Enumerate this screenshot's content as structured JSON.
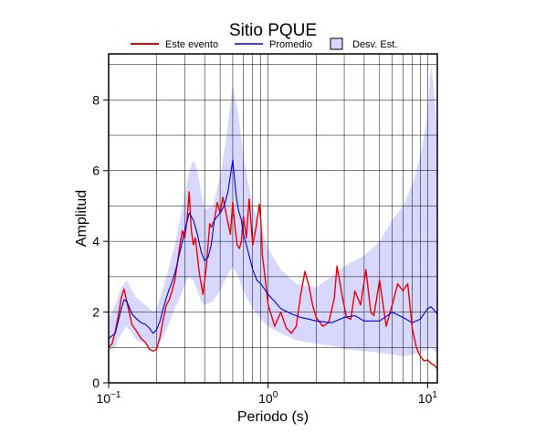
{
  "chart_data": {
    "type": "line",
    "title": "Sitio PQUE",
    "xlabel": "Periodo (s)",
    "ylabel": "Amplitud",
    "xscale": "log",
    "xlim": [
      0.1,
      11.5
    ],
    "ylim": [
      0,
      9.3
    ],
    "grid": true,
    "legend_position": "top",
    "y_ticks": [
      0,
      2,
      4,
      6,
      8
    ],
    "x_ticks": [
      {
        "value": 0.1,
        "base": "10",
        "exp": "−1"
      },
      {
        "value": 1,
        "base": "10",
        "exp": "0"
      },
      {
        "value": 10,
        "base": "10",
        "exp": "1"
      }
    ],
    "legend": {
      "este": "Este evento",
      "promedio": "Promedio",
      "desv": "Desv. Est."
    },
    "colors": {
      "este": "#ee0000",
      "promedio": "#0000dd",
      "band": "#d8d8ff"
    },
    "series": [
      {
        "name": "Este evento",
        "x": [
          0.1,
          0.105,
          0.11,
          0.115,
          0.12,
          0.125,
          0.13,
          0.14,
          0.15,
          0.16,
          0.17,
          0.18,
          0.19,
          0.2,
          0.21,
          0.22,
          0.23,
          0.24,
          0.25,
          0.26,
          0.27,
          0.28,
          0.29,
          0.3,
          0.31,
          0.32,
          0.33,
          0.34,
          0.35,
          0.37,
          0.39,
          0.41,
          0.43,
          0.44,
          0.46,
          0.48,
          0.5,
          0.52,
          0.55,
          0.58,
          0.6,
          0.62,
          0.64,
          0.66,
          0.68,
          0.7,
          0.73,
          0.76,
          0.8,
          0.84,
          0.88,
          0.9,
          0.92,
          0.95,
          1.0,
          1.05,
          1.1,
          1.2,
          1.3,
          1.4,
          1.5,
          1.6,
          1.7,
          1.8,
          1.9,
          2.0,
          2.2,
          2.4,
          2.6,
          2.7,
          2.9,
          3.1,
          3.3,
          3.5,
          3.8,
          4.1,
          4.4,
          4.6,
          5.0,
          5.5,
          6.0,
          6.5,
          7.0,
          7.5,
          8.0,
          8.5,
          9.0,
          9.5,
          10.0,
          10.5,
          11.0,
          11.5
        ],
        "values": [
          1.0,
          1.1,
          1.45,
          1.9,
          2.4,
          2.65,
          2.3,
          1.65,
          1.45,
          1.25,
          1.15,
          0.95,
          0.9,
          0.95,
          1.3,
          1.8,
          2.2,
          2.35,
          2.6,
          2.9,
          3.4,
          3.9,
          4.3,
          4.1,
          4.6,
          5.4,
          4.3,
          3.9,
          4.1,
          3.1,
          2.5,
          3.3,
          4.5,
          4.4,
          4.6,
          5.1,
          4.8,
          5.25,
          4.7,
          4.2,
          5.1,
          4.4,
          3.9,
          3.8,
          4.0,
          4.7,
          4.1,
          5.2,
          3.9,
          4.4,
          5.05,
          4.6,
          3.6,
          3.1,
          2.2,
          1.9,
          1.6,
          2.0,
          1.55,
          1.4,
          1.6,
          2.5,
          3.15,
          2.75,
          2.2,
          1.85,
          1.6,
          1.7,
          2.4,
          3.3,
          2.5,
          1.85,
          1.8,
          2.6,
          2.2,
          3.2,
          2.0,
          1.9,
          2.9,
          1.6,
          2.2,
          2.8,
          2.6,
          2.8,
          1.55,
          1.0,
          0.75,
          0.62,
          0.65,
          0.55,
          0.5,
          0.4
        ]
      },
      {
        "name": "Promedio",
        "x": [
          0.1,
          0.11,
          0.12,
          0.125,
          0.13,
          0.14,
          0.15,
          0.16,
          0.17,
          0.18,
          0.19,
          0.2,
          0.21,
          0.22,
          0.23,
          0.24,
          0.25,
          0.26,
          0.27,
          0.28,
          0.3,
          0.32,
          0.34,
          0.36,
          0.38,
          0.4,
          0.42,
          0.44,
          0.46,
          0.5,
          0.53,
          0.56,
          0.6,
          0.63,
          0.65,
          0.68,
          0.7,
          0.75,
          0.8,
          0.85,
          0.9,
          1.0,
          1.1,
          1.2,
          1.4,
          1.6,
          1.8,
          2.0,
          2.5,
          3.0,
          3.5,
          4.0,
          5.0,
          6.0,
          7.0,
          8.0,
          9.0,
          10.0,
          10.5,
          11.0,
          11.5
        ],
        "values": [
          1.25,
          1.4,
          2.1,
          2.35,
          2.3,
          1.95,
          1.8,
          1.7,
          1.65,
          1.55,
          1.4,
          1.5,
          1.75,
          2.1,
          2.4,
          2.65,
          2.85,
          3.1,
          3.4,
          3.7,
          4.3,
          4.8,
          4.6,
          4.2,
          3.7,
          3.45,
          3.55,
          3.9,
          4.6,
          4.8,
          5.0,
          5.4,
          6.3,
          5.3,
          4.9,
          4.6,
          4.2,
          3.7,
          3.2,
          2.9,
          2.8,
          2.5,
          2.3,
          2.1,
          1.95,
          1.85,
          1.8,
          1.75,
          1.7,
          1.85,
          1.9,
          1.75,
          1.75,
          2.0,
          1.85,
          1.7,
          1.8,
          2.1,
          2.15,
          2.05,
          1.95
        ]
      }
    ],
    "band": {
      "name": "Desv. Est.",
      "x": [
        0.1,
        0.11,
        0.12,
        0.13,
        0.14,
        0.15,
        0.17,
        0.19,
        0.2,
        0.22,
        0.24,
        0.26,
        0.28,
        0.3,
        0.32,
        0.34,
        0.36,
        0.38,
        0.4,
        0.45,
        0.5,
        0.55,
        0.6,
        0.65,
        0.7,
        0.8,
        0.9,
        1.0,
        1.2,
        1.5,
        2.0,
        2.5,
        3.0,
        4.0,
        5.0,
        6.0,
        7.0,
        8.0,
        9.0,
        10.0,
        10.5,
        11.0,
        11.5
      ],
      "upper": [
        1.8,
        2.2,
        2.7,
        2.9,
        2.6,
        2.4,
        2.2,
        2.0,
        2.1,
        2.7,
        3.3,
        3.9,
        4.6,
        5.3,
        6.0,
        6.3,
        6.0,
        5.4,
        4.9,
        5.0,
        5.8,
        7.0,
        8.4,
        7.6,
        6.4,
        5.0,
        4.4,
        3.8,
        3.2,
        2.8,
        2.7,
        3.0,
        3.3,
        3.6,
        4.0,
        4.6,
        5.0,
        5.6,
        6.4,
        7.6,
        9.0,
        8.2,
        7.0
      ],
      "lower": [
        0.9,
        1.0,
        1.4,
        1.6,
        1.4,
        1.2,
        1.1,
        1.0,
        1.0,
        1.3,
        1.7,
        2.1,
        2.4,
        2.8,
        3.0,
        2.9,
        2.6,
        2.3,
        2.2,
        2.3,
        2.6,
        3.0,
        3.3,
        3.0,
        2.6,
        2.1,
        1.8,
        1.6,
        1.4,
        1.2,
        1.1,
        1.05,
        0.95,
        0.9,
        0.85,
        0.8,
        0.75,
        0.8,
        0.85,
        0.95,
        1.0,
        0.9,
        0.8
      ]
    }
  }
}
